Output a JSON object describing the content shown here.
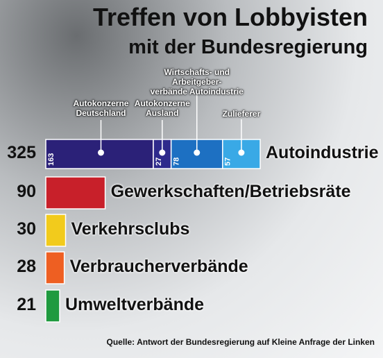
{
  "chart_data": {
    "type": "bar",
    "title": "Treffen von Lobbyisten",
    "subtitle": "mit der Bundesregierung",
    "categories": [
      "Autoindustrie",
      "Gewerkschaften/Betriebsräte",
      "Verkehrsclubs",
      "Verbraucherverbände",
      "Umweltverbände"
    ],
    "values": [
      325,
      90,
      30,
      28,
      21
    ],
    "colors": [
      null,
      "#c8202a",
      "#f2cb1c",
      "#ee5f22",
      "#1f9a3f"
    ],
    "segments": [
      {
        "name": "Autokonzerne\nDeutschland",
        "color": "#2b2178",
        "value": 163
      },
      {
        "name": "Autokonzerne\nAusland",
        "color": "#2e2a8c",
        "value": 27
      },
      {
        "name": "Wirtschafts- und Arbeitgeber-\nverbände Autoindustrie",
        "color": "#1d70c2",
        "value": 78
      },
      {
        "name": "Zulieferer",
        "color": "#39a9e6",
        "value": 57
      }
    ],
    "source": "Quelle: Antwort der Bundesregierung auf Kleine Anfrage der Linken"
  }
}
